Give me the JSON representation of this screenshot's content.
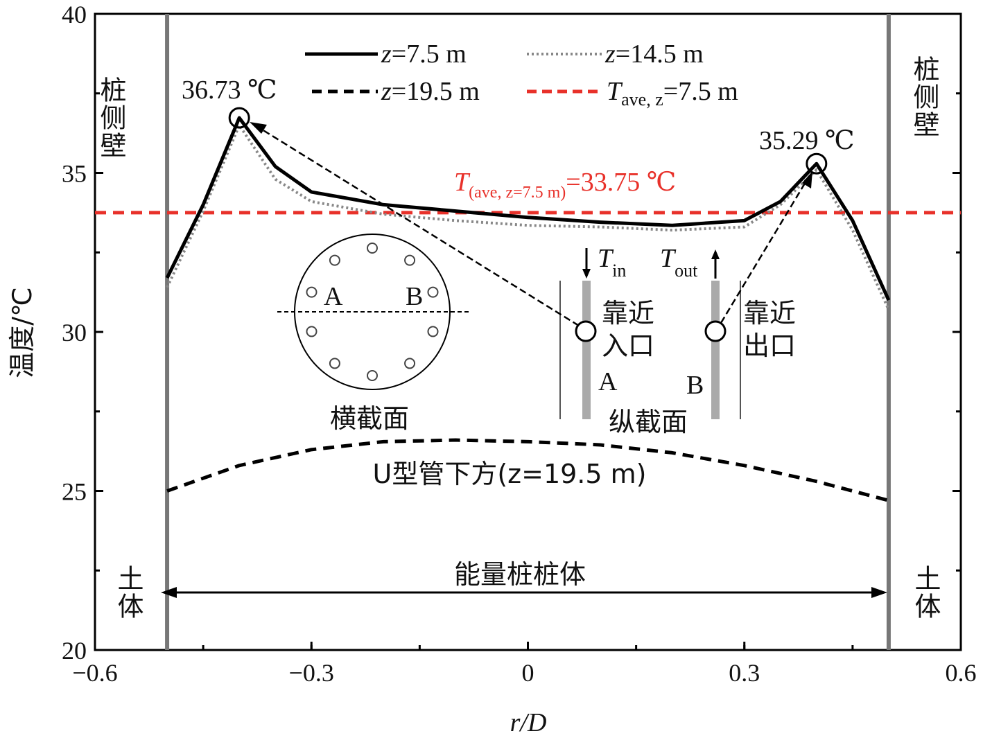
{
  "chart_data": {
    "type": "line",
    "xlabel": "r/D",
    "ylabel": "温度/℃",
    "xlim": [
      -0.6,
      0.6
    ],
    "ylim": [
      20,
      40
    ],
    "xticks": [
      "−0.6",
      "−0.3",
      "0",
      "0.3",
      "0.6"
    ],
    "yticks": [
      "20",
      "25",
      "30",
      "35",
      "40"
    ],
    "legend_position": "top",
    "series": [
      {
        "name": "z=7.5 m",
        "label_var": "z",
        "label_val": "=7.5 m",
        "style": "solid",
        "color": "#000000",
        "x": [
          -0.5,
          -0.45,
          -0.4,
          -0.35,
          -0.3,
          -0.2,
          -0.1,
          0,
          0.1,
          0.2,
          0.3,
          0.35,
          0.4,
          0.45,
          0.5
        ],
        "y": [
          31.7,
          34.0,
          36.73,
          35.2,
          34.4,
          34.0,
          33.8,
          33.6,
          33.45,
          33.35,
          33.5,
          34.1,
          35.29,
          33.5,
          31.0
        ]
      },
      {
        "name": "z=14.5 m",
        "label_var": "z",
        "label_val": "=14.5 m",
        "style": "dotted",
        "color": "#888888",
        "x": [
          -0.5,
          -0.45,
          -0.4,
          -0.35,
          -0.3,
          -0.2,
          -0.1,
          0,
          0.1,
          0.2,
          0.3,
          0.35,
          0.4,
          0.45,
          0.5
        ],
        "y": [
          31.4,
          33.8,
          36.5,
          34.8,
          34.1,
          33.7,
          33.5,
          33.35,
          33.3,
          33.2,
          33.3,
          34.0,
          35.1,
          33.2,
          30.7
        ]
      },
      {
        "name": "z=19.5 m",
        "label_var": "z",
        "label_val": "=19.5 m",
        "style": "dashed",
        "color": "#000000",
        "x": [
          -0.5,
          -0.4,
          -0.3,
          -0.2,
          -0.1,
          0,
          0.1,
          0.2,
          0.3,
          0.4,
          0.5
        ],
        "y": [
          25.0,
          25.8,
          26.3,
          26.55,
          26.6,
          26.55,
          26.45,
          26.2,
          25.8,
          25.3,
          24.7
        ]
      },
      {
        "name": "T_ave,z=7.5 m",
        "label_var": "T",
        "label_sub": "ave, z",
        "label_val": "=7.5 m",
        "style": "dashed",
        "color": "#e8312a",
        "x": [
          -0.6,
          0.6
        ],
        "y": [
          33.75,
          33.75
        ]
      }
    ],
    "annotations": {
      "peak_left": "36.73 ℃",
      "peak_right": "35.29 ℃",
      "tave_T": "T",
      "tave_sub": "(ave, z=7.5 m)",
      "tave_val": "=33.75 ℃",
      "wall_left": "桩侧壁",
      "wall_right": "桩侧壁",
      "soil_left": "土体",
      "soil_right": "土体",
      "pile_body": "能量桩桩体",
      "under_u": "U型管下方(z=19.5 m)",
      "cross_section": "横截面",
      "long_section": "纵截面",
      "A": "A",
      "B": "B",
      "near_inlet": [
        "靠近",
        "入口"
      ],
      "near_outlet": [
        "靠近",
        "出口"
      ],
      "t_in": "T",
      "t_in_sub": "in",
      "t_out": "T",
      "t_out_sub": "out"
    }
  }
}
